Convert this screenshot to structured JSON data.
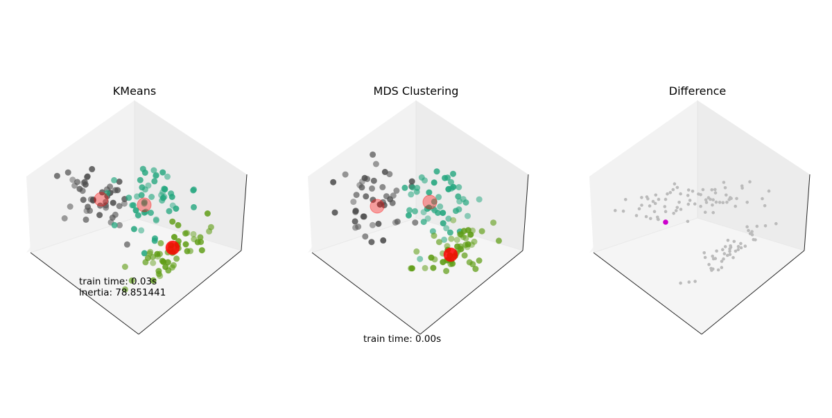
{
  "chart_data": [
    {
      "type": "scatter",
      "title": "KMeans",
      "annotations": [
        "train time: 0.03s",
        "inertia: 78.851441"
      ],
      "colors": {
        "cluster_a": "#4f4f4f",
        "cluster_b": "#23a67e",
        "cluster_c": "#5e9c14",
        "centroid": "#ff0000"
      },
      "seed": 11
    },
    {
      "type": "scatter",
      "title": "MDS Clustering",
      "annotations": [
        "train time: 0.00s"
      ],
      "colors": {
        "cluster_a": "#4f4f4f",
        "cluster_b": "#23a67e",
        "cluster_c": "#5e9c14",
        "centroid": "#ff0000"
      },
      "seed": 23
    },
    {
      "type": "scatter",
      "title": "Difference",
      "annotations": [],
      "colors": {
        "points": "#bbbbbb",
        "different": "#cc00cc"
      },
      "seed": 37
    }
  ]
}
